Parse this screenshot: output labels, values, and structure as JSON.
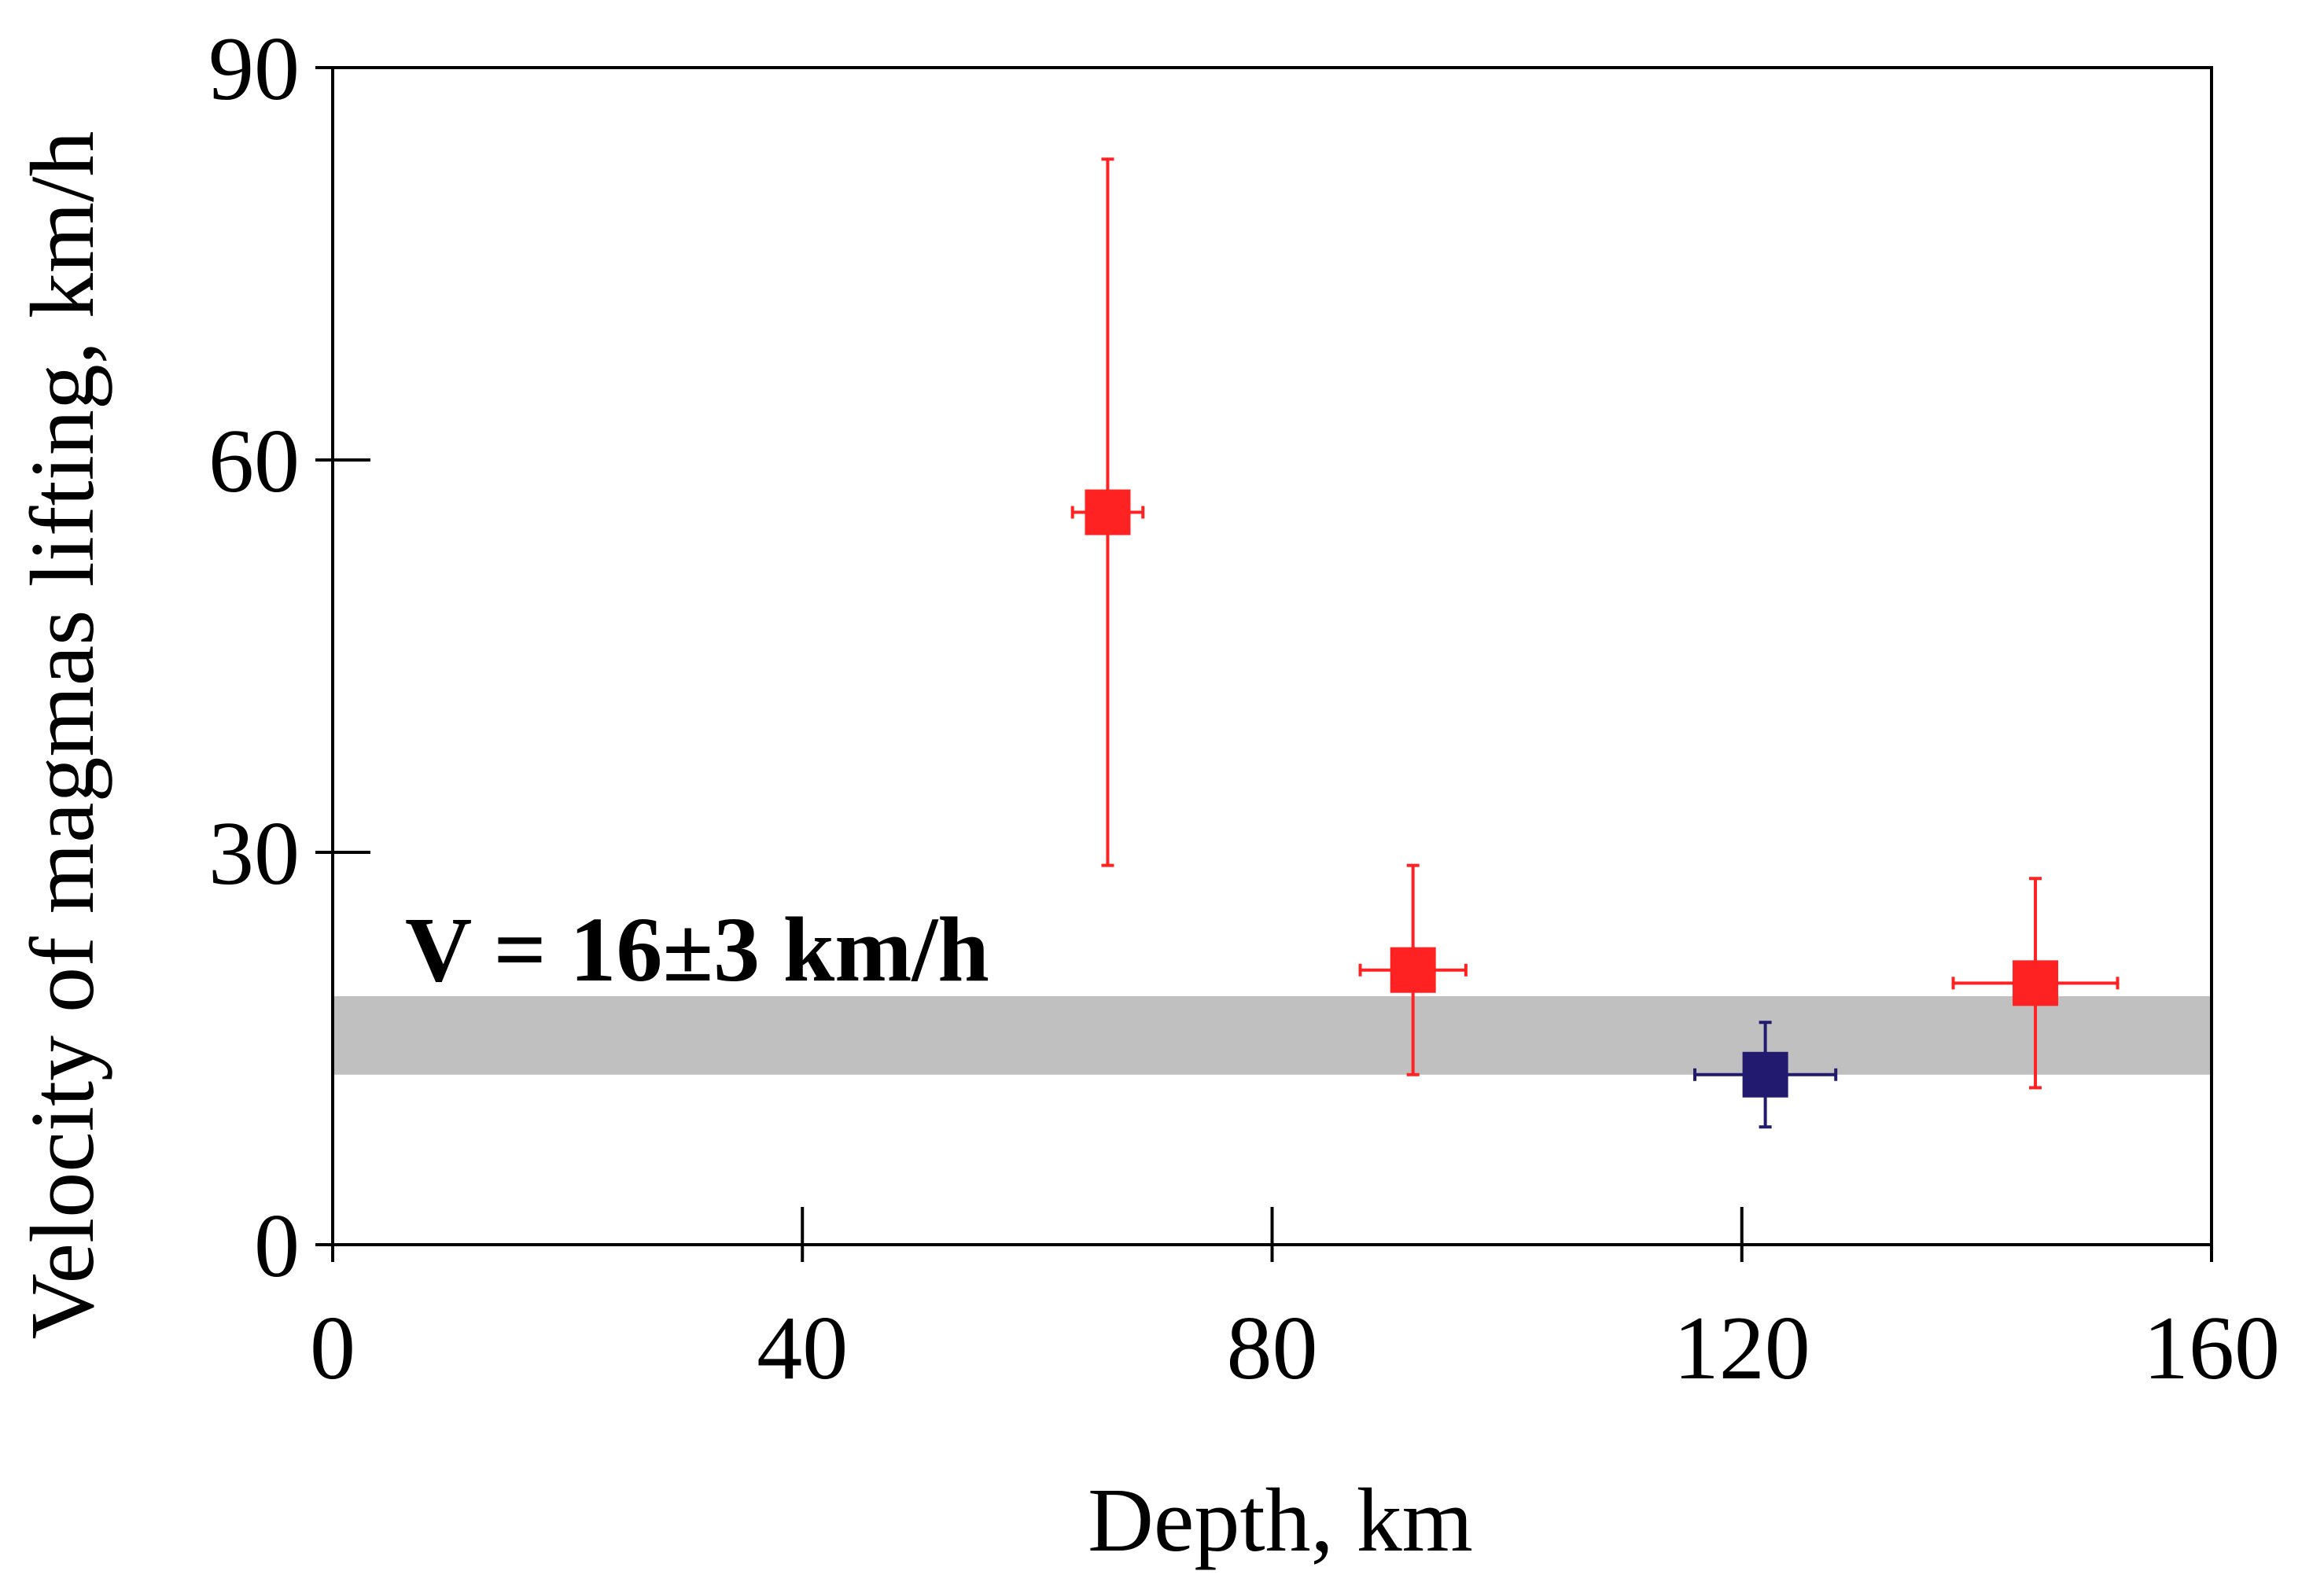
{
  "chart_data": {
    "type": "scatter",
    "title": "",
    "xlabel": "Depth, km",
    "ylabel": "Velocity of magmas lifting, km/h",
    "xlim": [
      0,
      160
    ],
    "ylim": [
      0,
      90
    ],
    "xticks": [
      "0",
      "40",
      "80",
      "120",
      "160"
    ],
    "yticks": [
      "0",
      "30",
      "60",
      "90"
    ],
    "grid": false,
    "legend": "none",
    "colors": {
      "red": "#ff2222",
      "navy": "#221a6e",
      "band": "#c0c0c0",
      "axis": "#000000"
    },
    "band": {
      "y_low": 13,
      "y_high": 19,
      "label": "V = 16±3 km/h"
    },
    "points": [
      {
        "x": 66,
        "y": 56,
        "x_err": 3,
        "y_low": 29,
        "y_high": 83,
        "color": "red"
      },
      {
        "x": 92,
        "y": 21,
        "x_err": 4.5,
        "y_low": 13,
        "y_high": 29,
        "color": "red"
      },
      {
        "x": 122,
        "y": 13,
        "x_err": 6,
        "y_low": 9,
        "y_high": 17,
        "color": "navy"
      },
      {
        "x": 145,
        "y": 20,
        "x_err": 7,
        "y_low": 12,
        "y_high": 28,
        "color": "red"
      }
    ]
  }
}
